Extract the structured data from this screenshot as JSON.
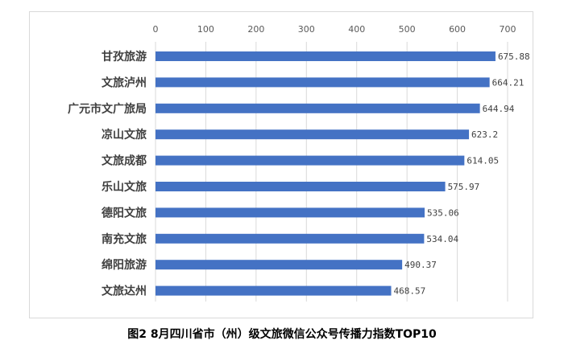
{
  "caption": "图2  8月四川省市（州）级文旅微信公众号传播力指数TOP10",
  "colors": {
    "bar": "#4472C4",
    "grid": "#d9d9d9",
    "tick": "#595959",
    "label": "#404040"
  },
  "chart_data": {
    "type": "bar",
    "orientation": "horizontal",
    "categories": [
      "甘孜旅游",
      "文旅泸州",
      "广元市文广旅局",
      "凉山文旅",
      "文旅成都",
      "乐山文旅",
      "德阳文旅",
      "南充文旅",
      "绵阳旅游",
      "文旅达州"
    ],
    "values": [
      675.88,
      664.21,
      644.94,
      623.2,
      614.05,
      575.97,
      535.06,
      534.04,
      490.37,
      468.57
    ],
    "value_labels": [
      "675.88",
      "664.21",
      "644.94",
      "623.2",
      "614.05",
      "575.97",
      "535.06",
      "534.04",
      "490.37",
      "468.57"
    ],
    "xticks": [
      "0",
      "100",
      "200",
      "300",
      "400",
      "500",
      "600",
      "700"
    ],
    "xlim": [
      0,
      700
    ],
    "axis_position": "top",
    "grid": true,
    "legend": "none"
  }
}
